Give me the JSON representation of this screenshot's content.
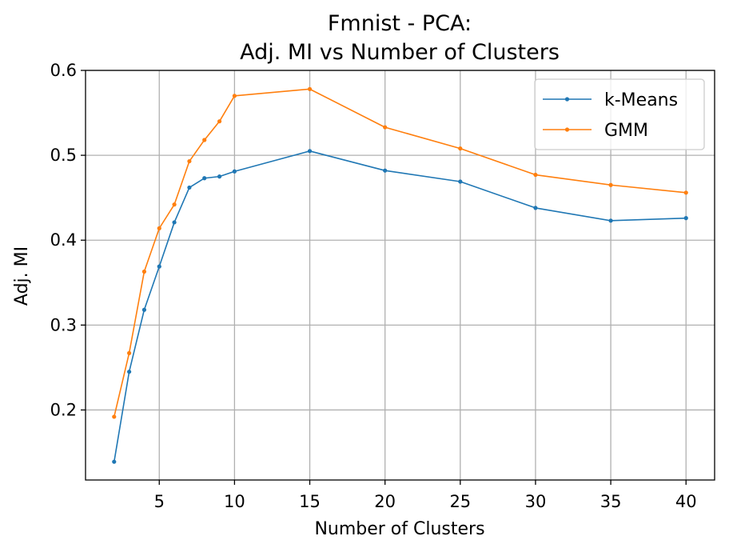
{
  "chart_data": {
    "type": "line",
    "title": [
      "Fmnist - PCA:",
      "Adj. MI vs Number of Clusters"
    ],
    "xlabel": "Number of Clusters",
    "ylabel": "Adj. MI",
    "xlim": [
      0.1,
      41.9
    ],
    "ylim": [
      0.1175,
      0.6
    ],
    "xticks": [
      5,
      10,
      15,
      20,
      25,
      30,
      35,
      40
    ],
    "yticks": [
      0.2,
      0.3,
      0.4,
      0.5,
      0.6
    ],
    "grid": true,
    "legend_position": "top-right",
    "x": [
      2,
      3,
      4,
      5,
      6,
      7,
      8,
      9,
      10,
      15,
      20,
      25,
      30,
      35,
      40
    ],
    "series": [
      {
        "name": "k-Means",
        "color": "#1f77b4",
        "values": [
          0.139,
          0.245,
          0.318,
          0.369,
          0.421,
          0.462,
          0.473,
          0.475,
          0.481,
          0.505,
          0.482,
          0.469,
          0.438,
          0.423,
          0.426
        ]
      },
      {
        "name": "GMM",
        "color": "#ff7f0e",
        "values": [
          0.192,
          0.267,
          0.363,
          0.414,
          0.442,
          0.493,
          0.518,
          0.54,
          0.57,
          0.578,
          0.533,
          0.508,
          0.477,
          0.465,
          0.456
        ]
      }
    ]
  }
}
